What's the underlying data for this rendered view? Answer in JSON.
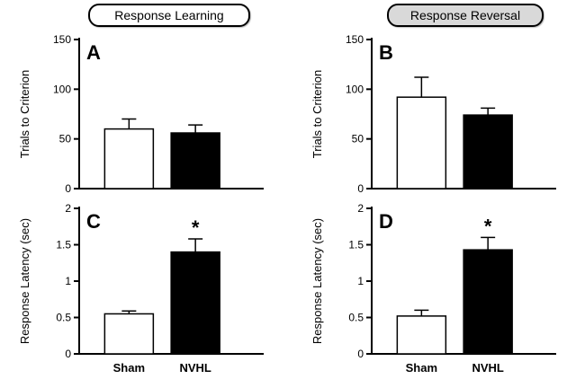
{
  "figure": {
    "headers": [
      {
        "label": "Response Learning",
        "fill": "#ffffff"
      },
      {
        "label": "Response Reversal",
        "fill": "#d9d9d9"
      }
    ],
    "border_color": "#000000"
  },
  "chart_data": [
    {
      "type": "bar",
      "panel": "A",
      "group": "Response Learning",
      "ylabel": "Trials to Criterion",
      "ylim": [
        0,
        150
      ],
      "yticks": [
        0,
        50,
        100,
        150
      ],
      "categories": [
        "Sham",
        "NVHL"
      ],
      "values": [
        60,
        56
      ],
      "errors": [
        10,
        8
      ],
      "bar_colors": [
        "#ffffff",
        "#000000"
      ],
      "significance": [
        false,
        false
      ],
      "show_xlabels": false,
      "grid": false,
      "legend": "none"
    },
    {
      "type": "bar",
      "panel": "B",
      "group": "Response Reversal",
      "ylabel": "Trials to Criterion",
      "ylim": [
        0,
        150
      ],
      "yticks": [
        0,
        50,
        100,
        150
      ],
      "categories": [
        "Sham",
        "NVHL"
      ],
      "values": [
        92,
        74
      ],
      "errors": [
        20,
        7
      ],
      "bar_colors": [
        "#ffffff",
        "#000000"
      ],
      "significance": [
        false,
        false
      ],
      "show_xlabels": false,
      "grid": false,
      "legend": "none"
    },
    {
      "type": "bar",
      "panel": "C",
      "group": "Response Learning",
      "ylabel": "Response Latency (sec)",
      "ylim": [
        0,
        2
      ],
      "yticks": [
        0,
        0.5,
        1,
        1.5,
        2
      ],
      "categories": [
        "Sham",
        "NVHL"
      ],
      "values": [
        0.55,
        1.4
      ],
      "errors": [
        0.04,
        0.18
      ],
      "bar_colors": [
        "#ffffff",
        "#000000"
      ],
      "significance": [
        false,
        true
      ],
      "significance_marker": "*",
      "show_xlabels": true,
      "grid": false,
      "legend": "none"
    },
    {
      "type": "bar",
      "panel": "D",
      "group": "Response Reversal",
      "ylabel": "Response Latency (sec)",
      "ylim": [
        0,
        2
      ],
      "yticks": [
        0,
        0.5,
        1,
        1.5,
        2
      ],
      "categories": [
        "Sham",
        "NVHL"
      ],
      "values": [
        0.52,
        1.43
      ],
      "errors": [
        0.08,
        0.17
      ],
      "bar_colors": [
        "#ffffff",
        "#000000"
      ],
      "significance": [
        false,
        true
      ],
      "significance_marker": "*",
      "show_xlabels": true,
      "grid": false,
      "legend": "none"
    }
  ]
}
